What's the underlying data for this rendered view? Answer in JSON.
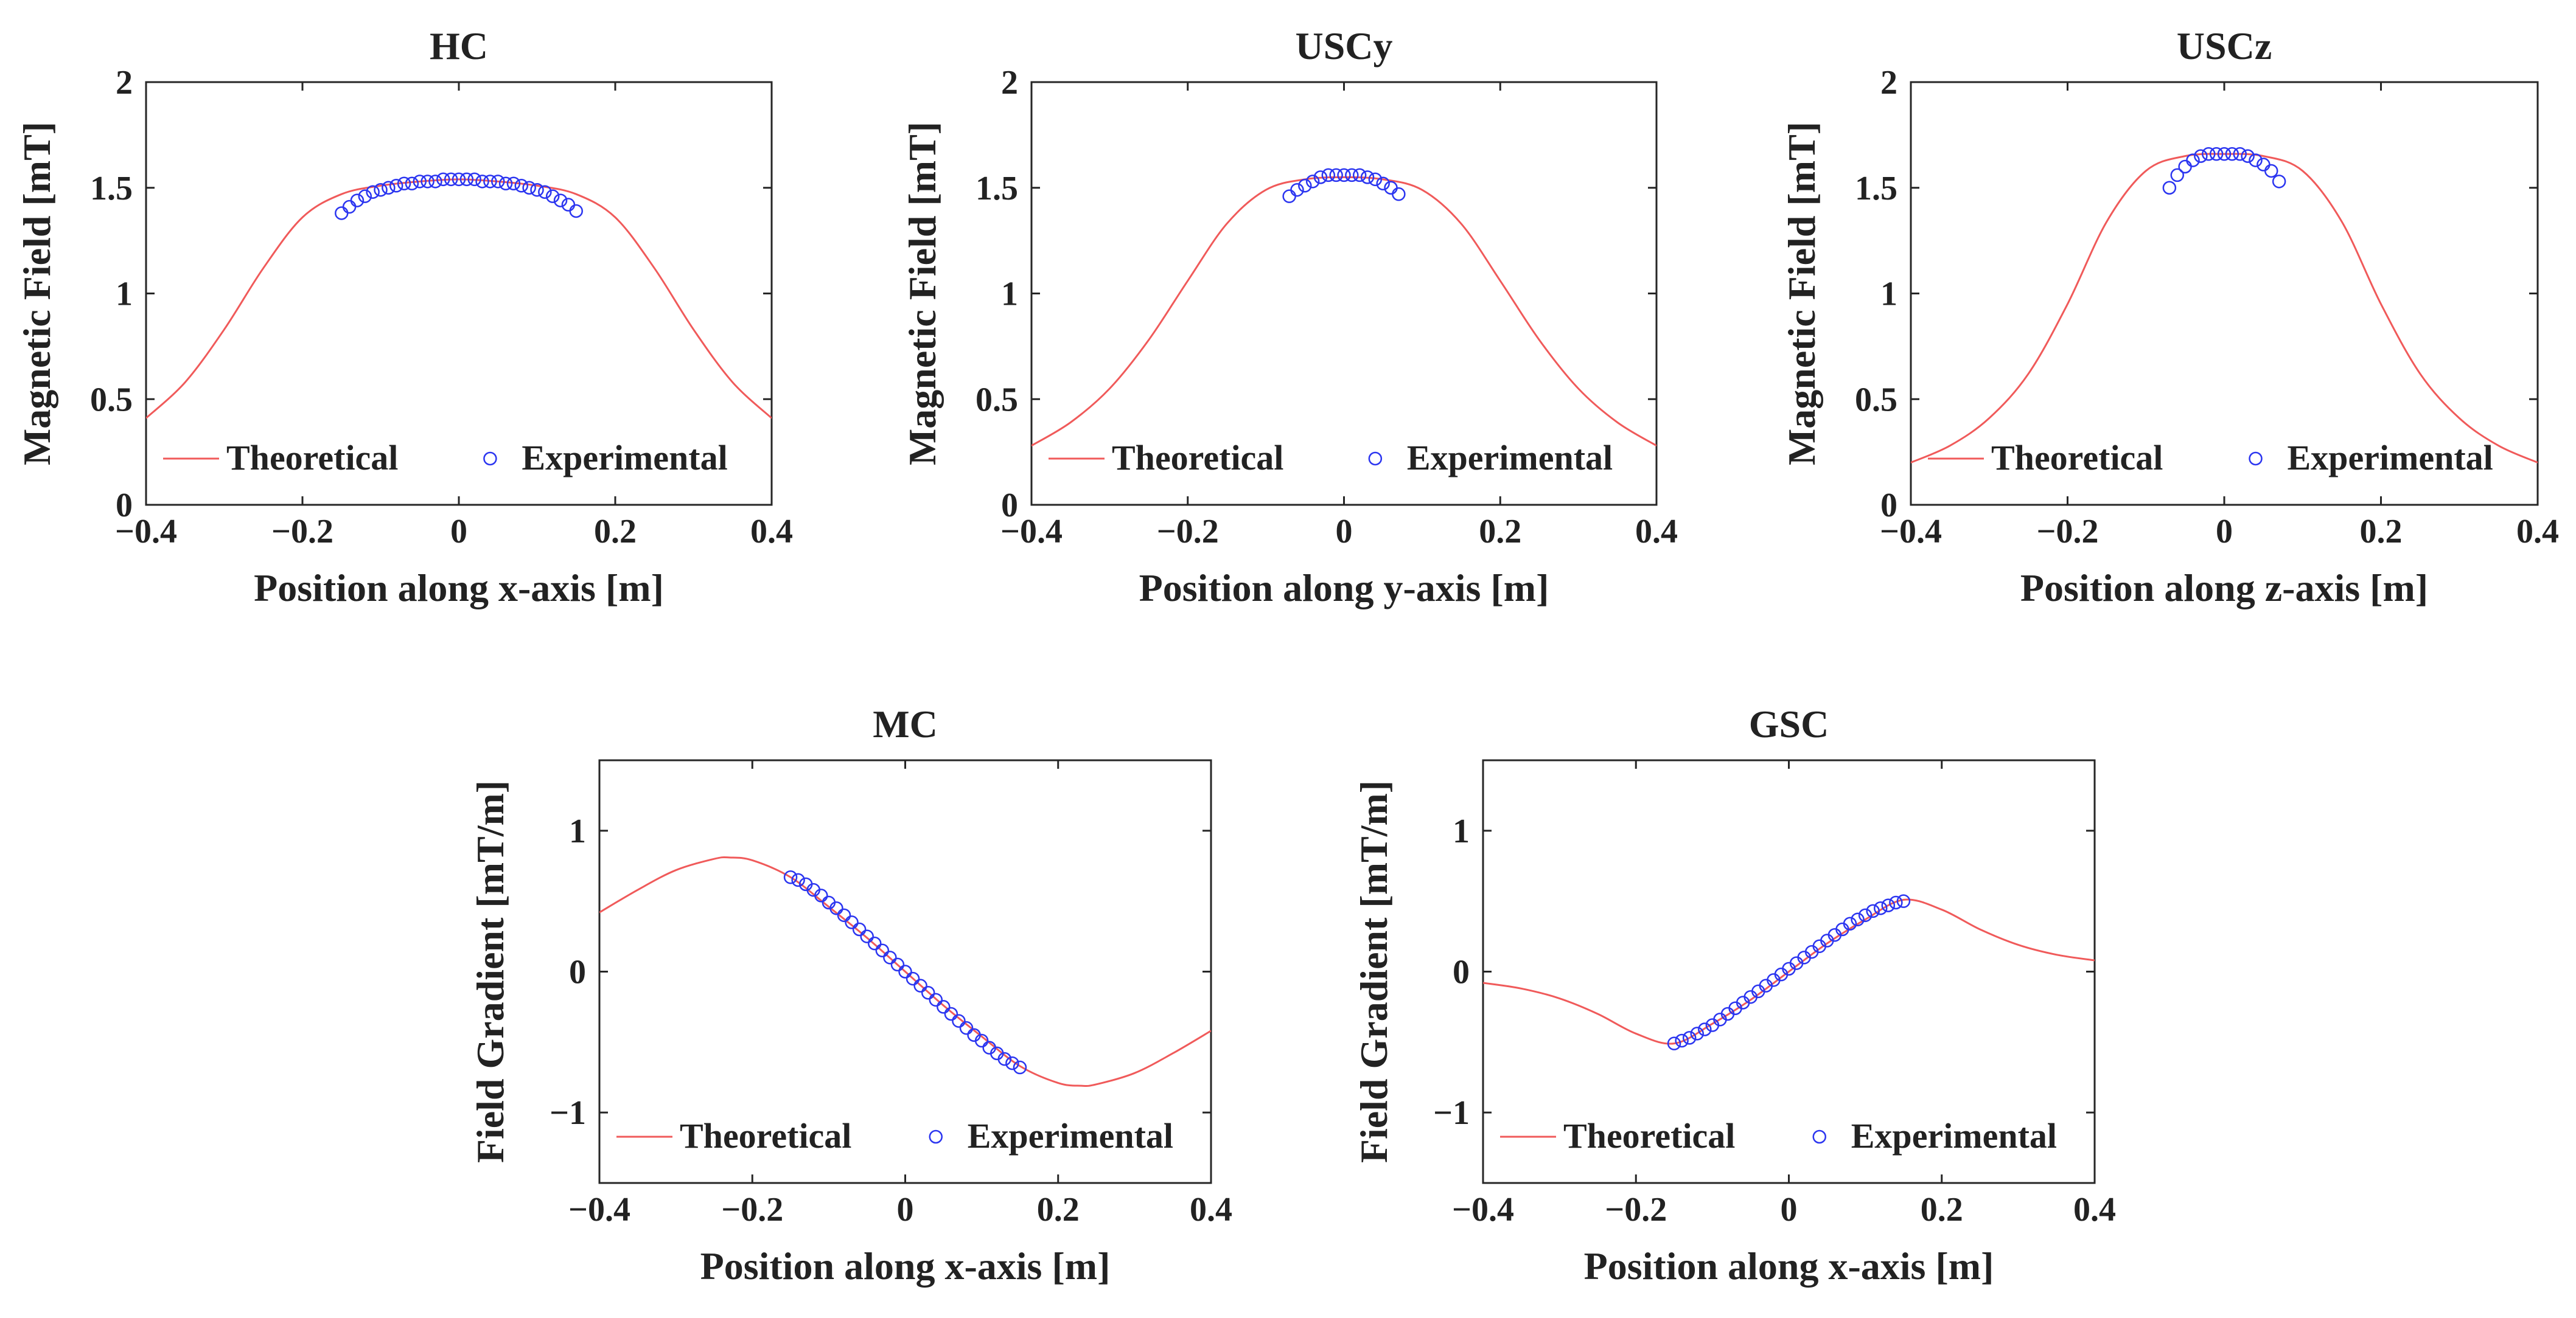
{
  "chart_data": [
    {
      "type": "line",
      "title": "HC",
      "xlabel": "Position along x-axis [m]",
      "ylabel": "Magnetic Field [mT]",
      "xlim": [
        -0.4,
        0.4
      ],
      "ylim": [
        0,
        2
      ],
      "xticks": [
        -0.4,
        -0.2,
        0,
        0.2,
        0.4
      ],
      "xtick_labels": [
        "−0.4",
        "−0.2",
        "0",
        "0.2",
        "0.4"
      ],
      "yticks": [
        0,
        0.5,
        1,
        1.5,
        2
      ],
      "ytick_labels": [
        "0",
        "0.5",
        "1",
        "1.5",
        "2"
      ],
      "grid": false,
      "legend": {
        "placement": "bottom",
        "entries": [
          "Theoretical",
          "Experimental"
        ]
      },
      "series": [
        {
          "name": "Theoretical",
          "style": "line",
          "color": "#f05a5a",
          "x": [
            -0.4,
            -0.35,
            -0.3,
            -0.25,
            -0.2,
            -0.15,
            -0.1,
            -0.05,
            0,
            0.05,
            0.1,
            0.15,
            0.2,
            0.25,
            0.3,
            0.35,
            0.4
          ],
          "y": [
            0.41,
            0.58,
            0.83,
            1.12,
            1.36,
            1.47,
            1.51,
            1.53,
            1.54,
            1.53,
            1.51,
            1.47,
            1.36,
            1.12,
            0.83,
            0.58,
            0.41
          ]
        },
        {
          "name": "Experimental",
          "style": "scatter",
          "color": "#2b35f0",
          "x": [
            -0.15,
            -0.14,
            -0.13,
            -0.12,
            -0.11,
            -0.1,
            -0.09,
            -0.08,
            -0.07,
            -0.06,
            -0.05,
            -0.04,
            -0.03,
            -0.02,
            -0.01,
            0,
            0.01,
            0.02,
            0.03,
            0.04,
            0.05,
            0.06,
            0.07,
            0.08,
            0.09,
            0.1,
            0.11,
            0.12,
            0.13,
            0.14,
            0.15
          ],
          "y": [
            1.38,
            1.41,
            1.44,
            1.46,
            1.48,
            1.49,
            1.5,
            1.51,
            1.52,
            1.52,
            1.53,
            1.53,
            1.53,
            1.54,
            1.54,
            1.54,
            1.54,
            1.54,
            1.53,
            1.53,
            1.53,
            1.52,
            1.52,
            1.51,
            1.5,
            1.49,
            1.48,
            1.46,
            1.44,
            1.42,
            1.39
          ]
        }
      ]
    },
    {
      "type": "line",
      "title": "USCy",
      "xlabel": "Position along y-axis [m]",
      "ylabel": "Magnetic Field [mT]",
      "xlim": [
        -0.4,
        0.4
      ],
      "ylim": [
        0,
        2
      ],
      "xticks": [
        -0.4,
        -0.2,
        0,
        0.2,
        0.4
      ],
      "xtick_labels": [
        "−0.4",
        "−0.2",
        "0",
        "0.2",
        "0.4"
      ],
      "yticks": [
        0,
        0.5,
        1,
        1.5,
        2
      ],
      "ytick_labels": [
        "0",
        "0.5",
        "1",
        "1.5",
        "2"
      ],
      "grid": false,
      "legend": {
        "placement": "bottom",
        "entries": [
          "Theoretical",
          "Experimental"
        ]
      },
      "series": [
        {
          "name": "Theoretical",
          "style": "line",
          "color": "#f05a5a",
          "x": [
            -0.4,
            -0.35,
            -0.3,
            -0.25,
            -0.2,
            -0.15,
            -0.1,
            -0.05,
            0,
            0.05,
            0.1,
            0.15,
            0.2,
            0.25,
            0.3,
            0.35,
            0.4
          ],
          "y": [
            0.28,
            0.39,
            0.55,
            0.78,
            1.06,
            1.33,
            1.49,
            1.54,
            1.55,
            1.54,
            1.49,
            1.33,
            1.06,
            0.78,
            0.55,
            0.39,
            0.28
          ]
        },
        {
          "name": "Experimental",
          "style": "scatter",
          "color": "#2b35f0",
          "x": [
            -0.07,
            -0.06,
            -0.05,
            -0.04,
            -0.03,
            -0.02,
            -0.01,
            0,
            0.01,
            0.02,
            0.03,
            0.04,
            0.05,
            0.06,
            0.07
          ],
          "y": [
            1.46,
            1.49,
            1.51,
            1.53,
            1.55,
            1.56,
            1.56,
            1.56,
            1.56,
            1.56,
            1.55,
            1.54,
            1.52,
            1.5,
            1.47
          ]
        }
      ]
    },
    {
      "type": "line",
      "title": "USCz",
      "xlabel": "Position along z-axis [m]",
      "ylabel": "Magnetic Field [mT]",
      "xlim": [
        -0.4,
        0.4
      ],
      "ylim": [
        0,
        2
      ],
      "xticks": [
        -0.4,
        -0.2,
        0,
        0.2,
        0.4
      ],
      "xtick_labels": [
        "−0.4",
        "−0.2",
        "0",
        "0.2",
        "0.4"
      ],
      "yticks": [
        0,
        0.5,
        1,
        1.5,
        2
      ],
      "ytick_labels": [
        "0",
        "0.5",
        "1",
        "1.5",
        "2"
      ],
      "grid": false,
      "legend": {
        "placement": "bottom",
        "entries": [
          "Theoretical",
          "Experimental"
        ]
      },
      "series": [
        {
          "name": "Theoretical",
          "style": "line",
          "color": "#f05a5a",
          "x": [
            -0.4,
            -0.35,
            -0.3,
            -0.25,
            -0.2,
            -0.15,
            -0.1,
            -0.05,
            0,
            0.05,
            0.1,
            0.15,
            0.2,
            0.25,
            0.3,
            0.35,
            0.4
          ],
          "y": [
            0.2,
            0.28,
            0.41,
            0.62,
            0.95,
            1.34,
            1.58,
            1.65,
            1.66,
            1.65,
            1.58,
            1.34,
            0.95,
            0.62,
            0.41,
            0.28,
            0.2
          ]
        },
        {
          "name": "Experimental",
          "style": "scatter",
          "color": "#2b35f0",
          "x": [
            -0.07,
            -0.06,
            -0.05,
            -0.04,
            -0.03,
            -0.02,
            -0.01,
            0,
            0.01,
            0.02,
            0.03,
            0.04,
            0.05,
            0.06,
            0.07
          ],
          "y": [
            1.5,
            1.56,
            1.6,
            1.63,
            1.65,
            1.66,
            1.66,
            1.66,
            1.66,
            1.66,
            1.65,
            1.63,
            1.61,
            1.58,
            1.53
          ]
        }
      ]
    },
    {
      "type": "line",
      "title": "MC",
      "xlabel": "Position along x-axis [m]",
      "ylabel": "Field Gradient [mT/m]",
      "xlim": [
        -0.4,
        0.4
      ],
      "ylim": [
        -1.5,
        1.5
      ],
      "xticks": [
        -0.4,
        -0.2,
        0,
        0.2,
        0.4
      ],
      "xtick_labels": [
        "−0.4",
        "−0.2",
        "0",
        "0.2",
        "0.4"
      ],
      "yticks": [
        -1,
        0,
        1
      ],
      "ytick_labels": [
        "−1",
        "0",
        "1"
      ],
      "grid": false,
      "legend": {
        "placement": "bottom",
        "entries": [
          "Theoretical",
          "Experimental"
        ]
      },
      "series": [
        {
          "name": "Theoretical",
          "style": "line",
          "color": "#f05a5a",
          "x": [
            -0.4,
            -0.35,
            -0.3,
            -0.25,
            -0.23,
            -0.2,
            -0.15,
            -0.1,
            -0.05,
            0,
            0.05,
            0.1,
            0.15,
            0.2,
            0.23,
            0.25,
            0.3,
            0.35,
            0.4
          ],
          "y": [
            0.42,
            0.58,
            0.72,
            0.8,
            0.81,
            0.79,
            0.67,
            0.46,
            0.24,
            0.0,
            -0.24,
            -0.46,
            -0.67,
            -0.79,
            -0.81,
            -0.8,
            -0.72,
            -0.58,
            -0.42
          ]
        },
        {
          "name": "Experimental",
          "style": "scatter",
          "color": "#2b35f0",
          "x": [
            -0.15,
            -0.14,
            -0.13,
            -0.12,
            -0.11,
            -0.1,
            -0.09,
            -0.08,
            -0.07,
            -0.06,
            -0.05,
            -0.04,
            -0.03,
            -0.02,
            -0.01,
            0,
            0.01,
            0.02,
            0.03,
            0.04,
            0.05,
            0.06,
            0.07,
            0.08,
            0.09,
            0.1,
            0.11,
            0.12,
            0.13,
            0.14,
            0.15
          ],
          "y": [
            0.67,
            0.65,
            0.62,
            0.58,
            0.54,
            0.49,
            0.45,
            0.4,
            0.35,
            0.3,
            0.25,
            0.2,
            0.15,
            0.1,
            0.05,
            0.0,
            -0.05,
            -0.1,
            -0.15,
            -0.2,
            -0.25,
            -0.3,
            -0.35,
            -0.4,
            -0.45,
            -0.49,
            -0.54,
            -0.58,
            -0.62,
            -0.65,
            -0.68
          ]
        }
      ]
    },
    {
      "type": "line",
      "title": "GSC",
      "xlabel": "Position along x-axis [m]",
      "ylabel": "Field Gradient [mT/m]",
      "xlim": [
        -0.4,
        0.4
      ],
      "ylim": [
        -1.5,
        1.5
      ],
      "xticks": [
        -0.4,
        -0.2,
        0,
        0.2,
        0.4
      ],
      "xtick_labels": [
        "−0.4",
        "−0.2",
        "0",
        "0.2",
        "0.4"
      ],
      "yticks": [
        -1,
        0,
        1
      ],
      "ytick_labels": [
        "−1",
        "0",
        "1"
      ],
      "grid": false,
      "legend": {
        "placement": "bottom",
        "entries": [
          "Theoretical",
          "Experimental"
        ]
      },
      "series": [
        {
          "name": "Theoretical",
          "style": "line",
          "color": "#f05a5a",
          "x": [
            -0.4,
            -0.35,
            -0.3,
            -0.25,
            -0.2,
            -0.15,
            -0.1,
            -0.05,
            0,
            0.05,
            0.1,
            0.15,
            0.2,
            0.25,
            0.3,
            0.35,
            0.4
          ],
          "y": [
            -0.08,
            -0.12,
            -0.19,
            -0.3,
            -0.44,
            -0.51,
            -0.37,
            -0.2,
            0.0,
            0.2,
            0.37,
            0.51,
            0.44,
            0.3,
            0.19,
            0.12,
            0.08
          ]
        },
        {
          "name": "Experimental",
          "style": "scatter",
          "color": "#2b35f0",
          "x": [
            -0.15,
            -0.14,
            -0.13,
            -0.12,
            -0.11,
            -0.1,
            -0.09,
            -0.08,
            -0.07,
            -0.06,
            -0.05,
            -0.04,
            -0.03,
            -0.02,
            -0.01,
            0,
            0.01,
            0.02,
            0.03,
            0.04,
            0.05,
            0.06,
            0.07,
            0.08,
            0.09,
            0.1,
            0.11,
            0.12,
            0.13,
            0.14,
            0.15
          ],
          "y": [
            -0.51,
            -0.49,
            -0.47,
            -0.44,
            -0.41,
            -0.38,
            -0.34,
            -0.3,
            -0.26,
            -0.22,
            -0.18,
            -0.14,
            -0.1,
            -0.06,
            -0.02,
            0.02,
            0.06,
            0.1,
            0.14,
            0.18,
            0.22,
            0.26,
            0.3,
            0.34,
            0.37,
            0.4,
            0.43,
            0.45,
            0.47,
            0.49,
            0.5
          ]
        }
      ]
    }
  ]
}
